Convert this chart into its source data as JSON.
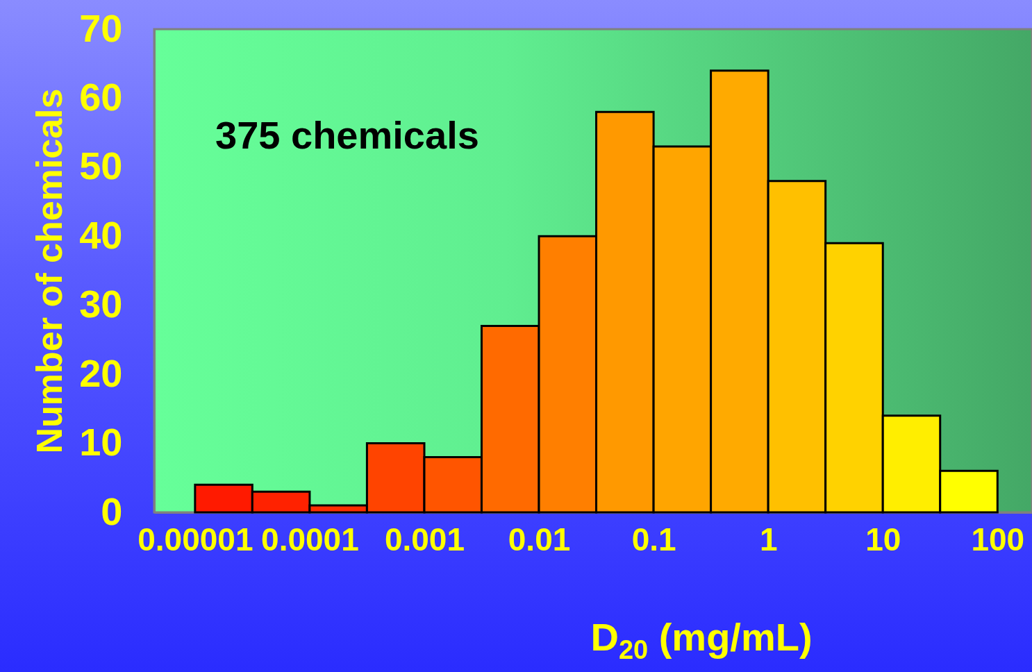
{
  "chart_data": {
    "type": "histogram",
    "ylabel": "Number of chemicals",
    "xlabel": "D$_{20}$ (mg/mL)",
    "annotations": [
      "375 chemicals"
    ],
    "bins": [
      1e-05,
      3.16e-05,
      0.0001,
      0.000316,
      0.001,
      0.00316,
      0.01,
      0.0316,
      0.1,
      0.316,
      1,
      3.16,
      10,
      31.6,
      100
    ],
    "values": [
      4,
      3,
      1,
      10,
      8,
      27,
      40,
      58,
      53,
      64,
      48,
      39,
      14,
      6
    ],
    "colors": [
      "#ff1a00",
      "#ff2200",
      "#ff2e00",
      "#ff4400",
      "#ff5500",
      "#ff6a00",
      "#ff7f00",
      "#ff9900",
      "#ffa500",
      "#ffaa00",
      "#ffc000",
      "#ffd200",
      "#ffee00",
      "#ffff00"
    ],
    "log": "x",
    "xlim": [
      4.4e-06,
      200
    ],
    "xticks": [
      {
        "value": 1e-05,
        "label": "0.00001"
      },
      0.0001,
      0.001,
      0.01,
      0.1,
      1,
      10,
      100
    ],
    "ylim": [
      0,
      70
    ],
    "yticks": [
      0,
      10,
      20,
      30,
      40,
      50,
      60,
      70
    ],
    "grid": false
  }
}
